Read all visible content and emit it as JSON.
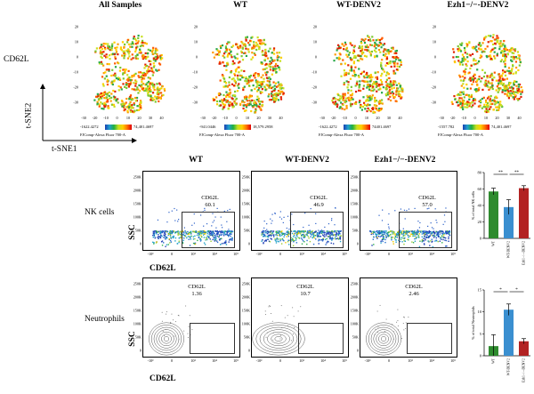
{
  "tsne": {
    "titles": [
      "All Samples",
      "WT",
      "WT-DENV2",
      "Ezh1−/−-DENV2"
    ],
    "marker": "CD62L",
    "axis_y": "t-SNE2",
    "axis_x": "t-SNE1",
    "y_ticks": [
      "20",
      "10",
      "0",
      "-10",
      "-20",
      "-30"
    ],
    "x_ticks": [
      "-30",
      "-20",
      "-10",
      "0",
      "10",
      "20",
      "30",
      "40"
    ],
    "scales": [
      {
        "min": "-1622.4272",
        "max": "74,401.4697",
        "channel": "FJComp-Alexa Fluor 700-A"
      },
      {
        "min": "-941.0446",
        "max": "18,579.2958",
        "channel": "FJComp-Alexa Fluor 700-A"
      },
      {
        "min": "-1622.4272",
        "max": "74401.4697",
        "channel": "FJComp-Alexa Fluor 700-A"
      },
      {
        "min": "-1557.782",
        "max": "74,401.4697",
        "channel": "FJComp-Alexa Fluor 700-A"
      }
    ]
  },
  "flow": {
    "columns": [
      "WT",
      "WT-DENV2",
      "Ezh1−/−-DENV2"
    ],
    "rows": [
      "NK cells",
      "Neutrophils"
    ],
    "y_axis": "SSC",
    "x_axis": "CD62L",
    "y_ticks": [
      "250K",
      "200K",
      "150K",
      "100K",
      "50K",
      "0"
    ],
    "x_ticks": [
      "-10³",
      "0",
      "10³",
      "10⁴",
      "10⁵"
    ],
    "gate_name": "CD62L",
    "nk_values": [
      "60.1",
      "46.9",
      "57.0"
    ],
    "neut_values": [
      "1.36",
      "10.7",
      "2.46"
    ]
  },
  "bar_charts": {
    "categories": [
      "WT",
      "WT-DENV2",
      "Ezh1−/−-DENV2"
    ],
    "colors": [
      "#2e8b2e",
      "#3a8fd0",
      "#b22222"
    ],
    "nk": {
      "ylabel": "% of total NK cells",
      "y_ticks": [
        "80",
        "60",
        "40",
        "20",
        "0"
      ],
      "ylim": [
        0,
        80
      ],
      "values": [
        57,
        38,
        61
      ],
      "errors": [
        4,
        9,
        3
      ],
      "sig": [
        "**",
        "**"
      ]
    },
    "neut": {
      "ylabel": "% of total Neutrophils",
      "y_ticks": [
        "15",
        "10",
        "5",
        "0"
      ],
      "ylim": [
        0,
        15
      ],
      "values": [
        2.2,
        10.5,
        3.3
      ],
      "errors": [
        2.6,
        1.3,
        0.6
      ],
      "sig": [
        "*",
        "*"
      ]
    }
  }
}
